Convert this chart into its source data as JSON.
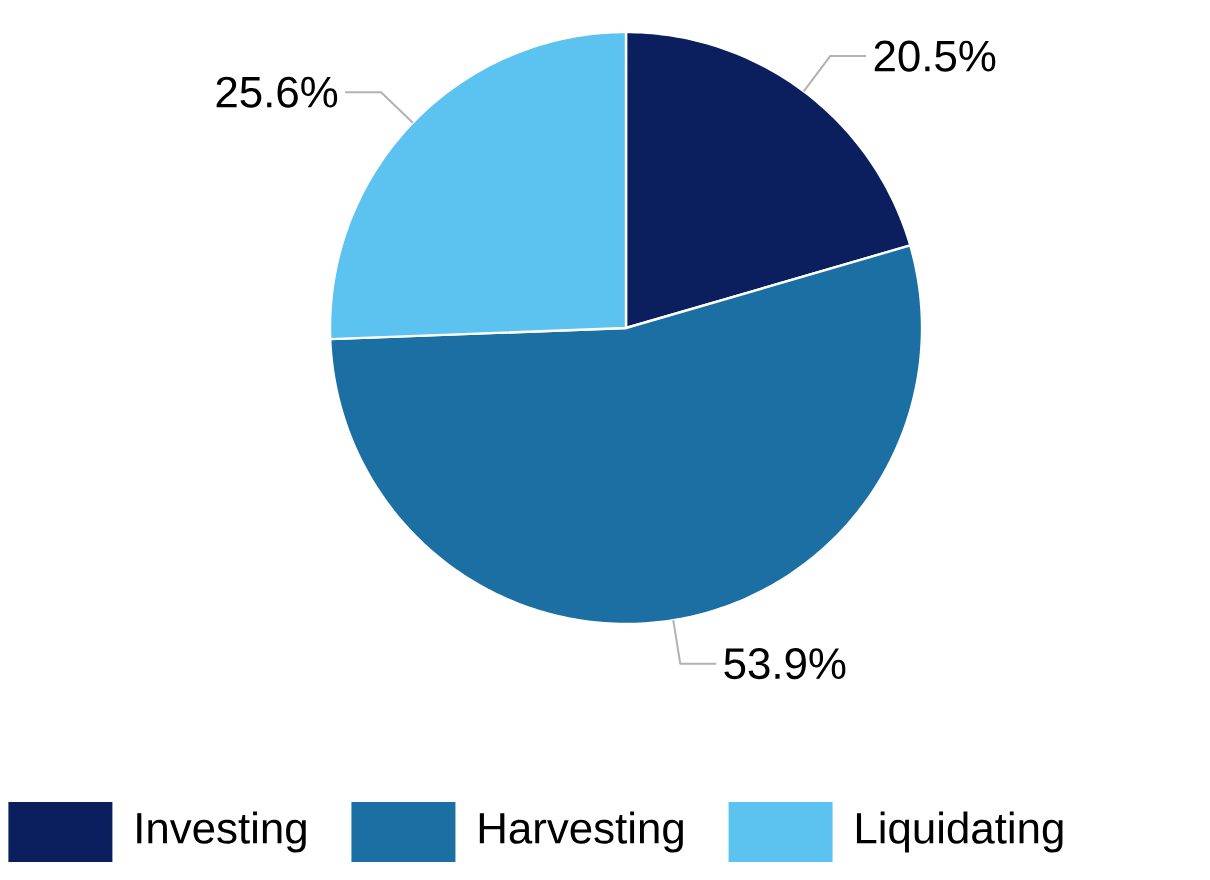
{
  "chart_data": {
    "type": "pie",
    "categories": [
      "Investing",
      "Harvesting",
      "Liquidating"
    ],
    "values": [
      20.5,
      53.9,
      25.6
    ],
    "value_labels": [
      "20.5%",
      "53.9%",
      "25.6%"
    ],
    "colors": [
      "#0b1f5e",
      "#1b6fa3",
      "#5cc2ef"
    ],
    "legend": "bottom"
  }
}
